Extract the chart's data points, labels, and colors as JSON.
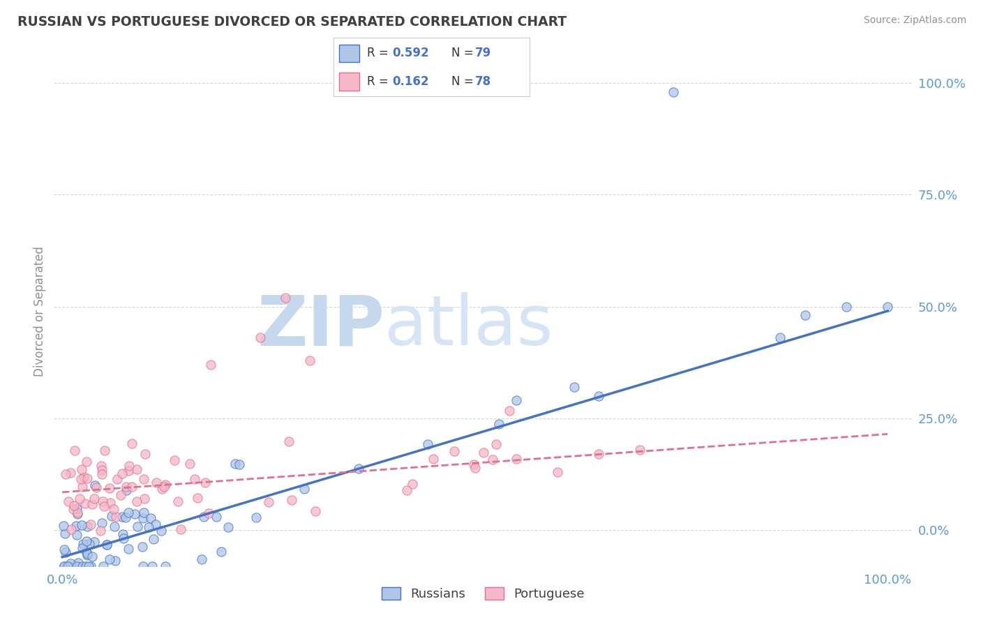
{
  "title": "RUSSIAN VS PORTUGUESE DIVORCED OR SEPARATED CORRELATION CHART",
  "source": "Source: ZipAtlas.com",
  "ylabel": "Divorced or Separated",
  "russian_r": 0.592,
  "russian_n": 79,
  "portuguese_r": 0.162,
  "portuguese_n": 78,
  "russian_color": "#aec6e8",
  "russian_line_color": "#4472c4",
  "portuguese_color": "#f4b8c8",
  "portuguese_line_color": "#e07090",
  "title_color": "#404040",
  "axis_label_color": "#5b9bd5",
  "watermark_zip_color": "#c5d8ee",
  "watermark_atlas_color": "#d5e5f5",
  "grid_color": "#cccccc",
  "legend_r_color": "#4472c4",
  "legend_n_color": "#333333",
  "y_tick_labels_right": [
    "0.0%",
    "25.0%",
    "50.0%",
    "75.0%",
    "100.0%"
  ],
  "y_tick_values_right": [
    0.0,
    0.25,
    0.5,
    0.75,
    1.0
  ],
  "figsize": [
    14.06,
    8.92
  ],
  "dpi": 100
}
